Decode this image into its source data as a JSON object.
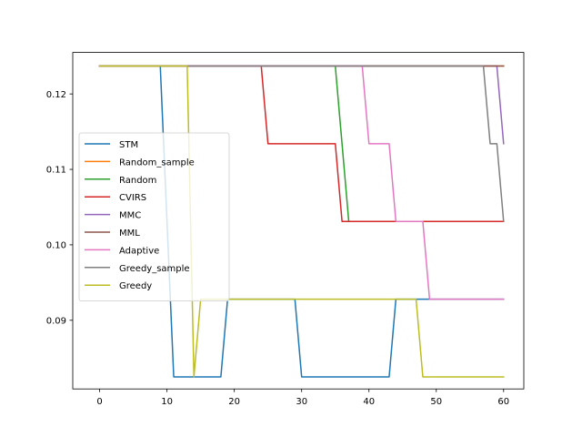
{
  "chart_data": {
    "type": "line",
    "title": "",
    "xlabel": "",
    "ylabel": "",
    "xlim": [
      -4,
      63
    ],
    "ylim": [
      0.0809,
      0.1255
    ],
    "xticks": [
      0,
      10,
      20,
      30,
      40,
      50,
      60
    ],
    "xtick_labels": [
      "0",
      "10",
      "20",
      "30",
      "40",
      "50",
      "60"
    ],
    "yticks": [
      0.09,
      0.1,
      0.11,
      0.12
    ],
    "ytick_labels": [
      "0.09",
      "0.10",
      "0.11",
      "0.12"
    ],
    "grid": false,
    "legend_position": "center-left",
    "series": [
      {
        "name": "STM",
        "color": "#1f77b4",
        "points": [
          [
            0,
            0.1237
          ],
          [
            9,
            0.1237
          ],
          [
            11,
            0.0825
          ],
          [
            18,
            0.0825
          ],
          [
            19,
            0.0928
          ],
          [
            29,
            0.0928
          ],
          [
            30,
            0.0825
          ],
          [
            43,
            0.0825
          ],
          [
            44,
            0.0928
          ],
          [
            60,
            0.0928
          ]
        ]
      },
      {
        "name": "Random_sample",
        "color": "#ff7f0e",
        "points": [
          [
            0,
            0.1237
          ],
          [
            60,
            0.1237
          ]
        ]
      },
      {
        "name": "Random",
        "color": "#2ca02c",
        "points": [
          [
            0,
            0.1237
          ],
          [
            35,
            0.1237
          ],
          [
            37,
            0.1031
          ],
          [
            60,
            0.1031
          ]
        ]
      },
      {
        "name": "CVIRS",
        "color": "#d62728",
        "points": [
          [
            0,
            0.1237
          ],
          [
            24,
            0.1237
          ],
          [
            25,
            0.1134
          ],
          [
            35,
            0.1134
          ],
          [
            36,
            0.1031
          ],
          [
            60,
            0.1031
          ]
        ]
      },
      {
        "name": "MMC",
        "color": "#9467bd",
        "points": [
          [
            0,
            0.1237
          ],
          [
            59,
            0.1237
          ],
          [
            60,
            0.1134
          ]
        ]
      },
      {
        "name": "MML",
        "color": "#8c564b",
        "points": [
          [
            0,
            0.1237
          ],
          [
            60,
            0.1237
          ]
        ]
      },
      {
        "name": "Adaptive",
        "color": "#e377c2",
        "points": [
          [
            0,
            0.1237
          ],
          [
            39,
            0.1237
          ],
          [
            40,
            0.1134
          ],
          [
            43,
            0.1134
          ],
          [
            44,
            0.1031
          ],
          [
            48,
            0.1031
          ],
          [
            49,
            0.0928
          ],
          [
            60,
            0.0928
          ]
        ]
      },
      {
        "name": "Greedy_sample",
        "color": "#7f7f7f",
        "points": [
          [
            0,
            0.1237
          ],
          [
            57,
            0.1237
          ],
          [
            58,
            0.1134
          ],
          [
            59,
            0.1134
          ],
          [
            60,
            0.1031
          ]
        ]
      },
      {
        "name": "Greedy",
        "color": "#bcbd22",
        "points": [
          [
            0,
            0.1237
          ],
          [
            13,
            0.1237
          ],
          [
            14,
            0.0825
          ],
          [
            15,
            0.0928
          ],
          [
            47,
            0.0928
          ],
          [
            48,
            0.0825
          ],
          [
            60,
            0.0825
          ]
        ]
      }
    ]
  }
}
